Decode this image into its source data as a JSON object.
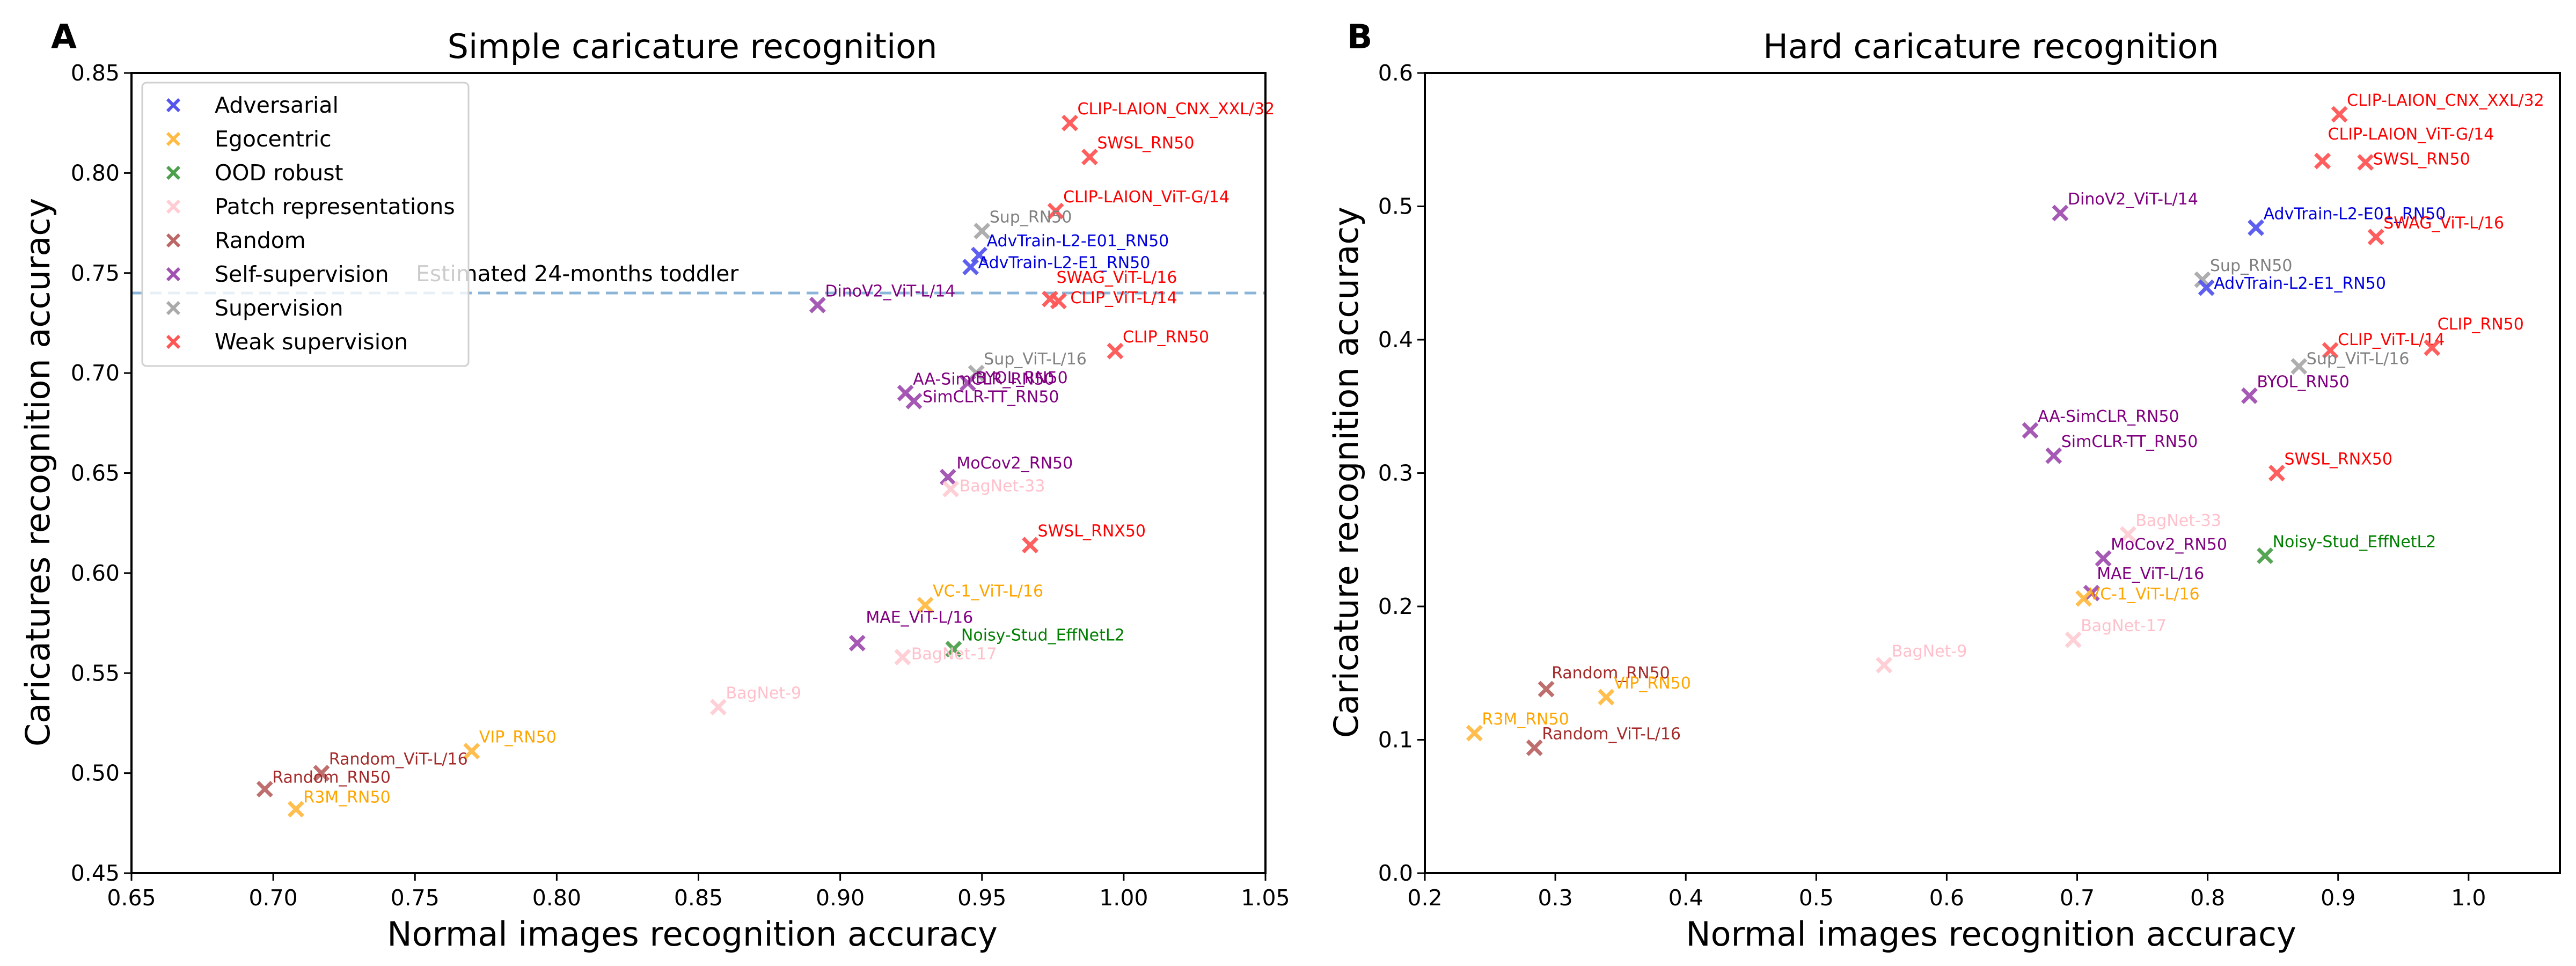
{
  "categories": [
    {
      "name": "Adversarial",
      "marker_color": "#5555ee",
      "text_color": "#0000dd"
    },
    {
      "name": "Egocentric",
      "marker_color": "#ffbb44",
      "text_color": "#ffa500"
    },
    {
      "name": "OOD robust",
      "marker_color": "#4ca04c",
      "text_color": "#008000"
    },
    {
      "name": "Patch representations",
      "marker_color": "#ffccd4",
      "text_color": "#ffc0cb"
    },
    {
      "name": "Random",
      "marker_color": "#bc6666",
      "text_color": "#a52a2a"
    },
    {
      "name": "Self-supervision",
      "marker_color": "#a050b0",
      "text_color": "#800080"
    },
    {
      "name": "Supervision",
      "marker_color": "#aaaaaa",
      "text_color": "#808080"
    },
    {
      "name": "Weak supervision",
      "marker_color": "#ff5555",
      "text_color": "#ff0000"
    }
  ],
  "chart_data": [
    {
      "panel_letter": "A",
      "type": "scatter",
      "title": "Simple caricature recognition",
      "xlabel": "Normal images recognition accuracy",
      "ylabel": "Caricatures recognition accuracy",
      "xlim": [
        0.65,
        1.05
      ],
      "ylim": [
        0.45,
        0.85
      ],
      "xticks": [
        "0.65",
        "0.70",
        "0.75",
        "0.80",
        "0.85",
        "0.90",
        "0.95",
        "1.00",
        "1.05"
      ],
      "yticks": [
        "0.45",
        "0.50",
        "0.55",
        "0.60",
        "0.65",
        "0.70",
        "0.75",
        "0.80",
        "0.85"
      ],
      "grid": false,
      "legend": "upper-left",
      "reference_line": {
        "y": 0.74,
        "label": "Estimated 24-months toddler",
        "style": "dashed",
        "color": "#8ab4d8"
      },
      "points": [
        {
          "label": "CLIP-LAION_CNX_XXL/32",
          "category": "Weak supervision",
          "x": 0.981,
          "y": 0.825
        },
        {
          "label": "SWSL_RN50",
          "category": "Weak supervision",
          "x": 0.988,
          "y": 0.808
        },
        {
          "label": "CLIP-LAION_ViT-G/14",
          "category": "Weak supervision",
          "x": 0.976,
          "y": 0.781
        },
        {
          "label": "Sup_RN50",
          "category": "Supervision",
          "x": 0.95,
          "y": 0.771
        },
        {
          "label": "AdvTrain-L2-E01_RN50",
          "category": "Adversarial",
          "x": 0.949,
          "y": 0.759
        },
        {
          "label": "AdvTrain-L2-E1_RN50",
          "category": "Adversarial",
          "x": 0.946,
          "y": 0.753
        },
        {
          "label": "SWAG_ViT-L/16",
          "category": "Weak supervision",
          "x": 0.974,
          "y": 0.737
        },
        {
          "label": "CLIP_ViT-L/14",
          "category": "Weak supervision",
          "x": 0.977,
          "y": 0.736
        },
        {
          "label": "DinoV2_ViT-L/14",
          "category": "Self-supervision",
          "x": 0.892,
          "y": 0.734
        },
        {
          "label": "CLIP_RN50",
          "category": "Weak supervision",
          "x": 0.997,
          "y": 0.711
        },
        {
          "label": "Sup_ViT-L/16",
          "category": "Supervision",
          "x": 0.948,
          "y": 0.7
        },
        {
          "label": "BYOL_RN50",
          "category": "Self-supervision",
          "x": 0.945,
          "y": 0.695
        },
        {
          "label": "AA-SimCLR_RN50",
          "category": "Self-supervision",
          "x": 0.923,
          "y": 0.69
        },
        {
          "label": "SimCLR-TT_RN50",
          "category": "Self-supervision",
          "x": 0.926,
          "y": 0.686
        },
        {
          "label": "MoCov2_RN50",
          "category": "Self-supervision",
          "x": 0.938,
          "y": 0.648
        },
        {
          "label": "BagNet-33",
          "category": "Patch representations",
          "x": 0.939,
          "y": 0.642
        },
        {
          "label": "SWSL_RNX50",
          "category": "Weak supervision",
          "x": 0.967,
          "y": 0.614
        },
        {
          "label": "VC-1_ViT-L/16",
          "category": "Egocentric",
          "x": 0.93,
          "y": 0.584
        },
        {
          "label": "MAE_ViT-L/16",
          "category": "Self-supervision",
          "x": 0.906,
          "y": 0.565
        },
        {
          "label": "Noisy-Stud_EffNetL2",
          "category": "OOD robust",
          "x": 0.94,
          "y": 0.562
        },
        {
          "label": "BagNet-17",
          "category": "Patch representations",
          "x": 0.922,
          "y": 0.558
        },
        {
          "label": "BagNet-9",
          "category": "Patch representations",
          "x": 0.857,
          "y": 0.533
        },
        {
          "label": "VIP_RN50",
          "category": "Egocentric",
          "x": 0.77,
          "y": 0.511
        },
        {
          "label": "Random_ViT-L/16",
          "category": "Random",
          "x": 0.717,
          "y": 0.5
        },
        {
          "label": "Random_RN50",
          "category": "Random",
          "x": 0.697,
          "y": 0.492
        },
        {
          "label": "R3M_RN50",
          "category": "Egocentric",
          "x": 0.708,
          "y": 0.482
        }
      ]
    },
    {
      "panel_letter": "B",
      "type": "scatter",
      "title": "Hard caricature recognition",
      "xlabel": "Normal images recognition accuracy",
      "ylabel": "Caricature recognition accuracy",
      "xlim": [
        0.2,
        1.07
      ],
      "ylim": [
        0.0,
        0.6
      ],
      "xticks": [
        "0.2",
        "0.3",
        "0.4",
        "0.5",
        "0.6",
        "0.7",
        "0.8",
        "0.9",
        "1.0"
      ],
      "yticks": [
        "0.0",
        "0.1",
        "0.2",
        "0.3",
        "0.4",
        "0.5",
        "0.6"
      ],
      "grid": false,
      "legend": "none",
      "points": [
        {
          "label": "CLIP-LAION_CNX_XXL/32",
          "category": "Weak supervision",
          "x": 0.901,
          "y": 0.569
        },
        {
          "label": "CLIP-LAION_ViT-G/14",
          "category": "Weak supervision",
          "x": 0.888,
          "y": 0.534
        },
        {
          "label": "SWSL_RN50",
          "category": "Weak supervision",
          "x": 0.921,
          "y": 0.533
        },
        {
          "label": "DinoV2_ViT-L/14",
          "category": "Self-supervision",
          "x": 0.687,
          "y": 0.495
        },
        {
          "label": "AdvTrain-L2-E01_RN50",
          "category": "Adversarial",
          "x": 0.837,
          "y": 0.484
        },
        {
          "label": "SWAG_ViT-L/16",
          "category": "Weak supervision",
          "x": 0.929,
          "y": 0.477
        },
        {
          "label": "Sup_RN50",
          "category": "Supervision",
          "x": 0.796,
          "y": 0.445
        },
        {
          "label": "AdvTrain-L2-E1_RN50",
          "category": "Adversarial",
          "x": 0.799,
          "y": 0.439
        },
        {
          "label": "CLIP_ViT-L/14",
          "category": "Weak supervision",
          "x": 0.894,
          "y": 0.392
        },
        {
          "label": "CLIP_RN50",
          "category": "Weak supervision",
          "x": 0.972,
          "y": 0.394
        },
        {
          "label": "Sup_ViT-L/16",
          "category": "Supervision",
          "x": 0.87,
          "y": 0.38
        },
        {
          "label": "BYOL_RN50",
          "category": "Self-supervision",
          "x": 0.832,
          "y": 0.358
        },
        {
          "label": "AA-SimCLR_RN50",
          "category": "Self-supervision",
          "x": 0.664,
          "y": 0.332
        },
        {
          "label": "SimCLR-TT_RN50",
          "category": "Self-supervision",
          "x": 0.682,
          "y": 0.313
        },
        {
          "label": "SWSL_RNX50",
          "category": "Weak supervision",
          "x": 0.853,
          "y": 0.3
        },
        {
          "label": "BagNet-33",
          "category": "Patch representations",
          "x": 0.739,
          "y": 0.254
        },
        {
          "label": "Noisy-Stud_EffNetL2",
          "category": "OOD robust",
          "x": 0.844,
          "y": 0.238
        },
        {
          "label": "MoCov2_RN50",
          "category": "Self-supervision",
          "x": 0.72,
          "y": 0.236
        },
        {
          "label": "MAE_ViT-L/16",
          "category": "Self-supervision",
          "x": 0.711,
          "y": 0.21
        },
        {
          "label": "VC-1_ViT-L/16",
          "category": "Egocentric",
          "x": 0.705,
          "y": 0.206
        },
        {
          "label": "BagNet-17",
          "category": "Patch representations",
          "x": 0.697,
          "y": 0.175
        },
        {
          "label": "BagNet-9",
          "category": "Patch representations",
          "x": 0.552,
          "y": 0.156
        },
        {
          "label": "Random_RN50",
          "category": "Random",
          "x": 0.293,
          "y": 0.138
        },
        {
          "label": "VIP_RN50",
          "category": "Egocentric",
          "x": 0.339,
          "y": 0.132
        },
        {
          "label": "R3M_RN50",
          "category": "Egocentric",
          "x": 0.238,
          "y": 0.105
        },
        {
          "label": "Random_ViT-L/16",
          "category": "Random",
          "x": 0.284,
          "y": 0.094
        }
      ]
    }
  ]
}
